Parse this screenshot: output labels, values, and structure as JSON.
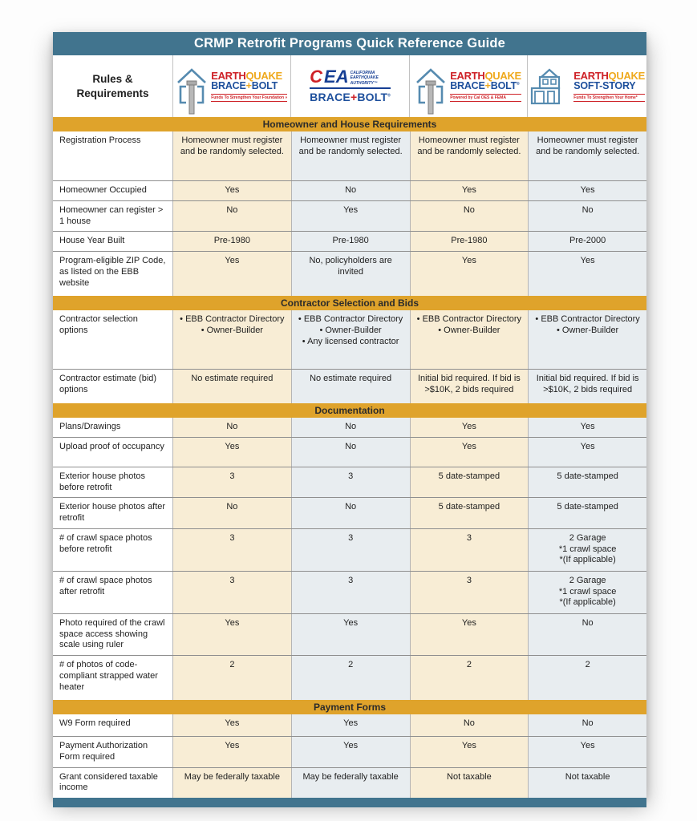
{
  "title": "CRMP Retrofit Programs Quick Reference Guide",
  "corner": {
    "line1": "Rules &",
    "line2": "Requirements"
  },
  "colors": {
    "header_teal": "#41748E",
    "section_gold": "#DFA32B",
    "col_cream": "#F8EDD5",
    "col_bluegray": "#E8EDF0",
    "logo_red": "#CE2127",
    "logo_gold": "#EFA91D",
    "logo_blue": "#1D4F9C"
  },
  "logos": [
    {
      "id": "earthquake-brace-bolt",
      "earth": "EARTH",
      "quake": "QUAKE",
      "brace": "BRACE",
      "plus": "+",
      "bolt": "BOLT",
      "tagline": "Funds To Strengthen Your Foundation »"
    },
    {
      "id": "cea-brace-bolt",
      "c": "C",
      "ea": "EA",
      "auth1": "CALIFORNIA",
      "auth2": "EARTHQUAKE",
      "auth3": "AUTHORITY™",
      "brace": "BRACE",
      "plus": "+",
      "bolt": "BOLT",
      "reg": "®"
    },
    {
      "id": "earthquake-brace-bolt-caloes",
      "earth": "EARTH",
      "quake": "QUAKE",
      "brace": "BRACE",
      "plus": "+",
      "bolt": "BOLT",
      "reg": "®",
      "tagline": "Powered by Cal OES & FEMA"
    },
    {
      "id": "earthquake-soft-story",
      "earth": "EARTH",
      "quake": "QUAKE",
      "brand": "SOFT-STORY",
      "tagline": "Funds To Strengthen Your Home*"
    }
  ],
  "sections": [
    {
      "title": "Homeowner and House Requirements",
      "rows": [
        {
          "label": "Registration Process",
          "values": [
            "Homeowner must register and be randomly selected.",
            "Homeowner must register and be randomly selected.",
            "Homeowner must register and be randomly selected.",
            "Homeowner must register and be randomly selected."
          ]
        },
        {
          "label": "Homeowner Occupied",
          "values": [
            "Yes",
            "No",
            "Yes",
            "Yes"
          ]
        },
        {
          "label": "Homeowner can register > 1 house",
          "values": [
            "No",
            "Yes",
            "No",
            "No"
          ]
        },
        {
          "label": "House Year Built",
          "values": [
            "Pre-1980",
            "Pre-1980",
            "Pre-1980",
            "Pre-2000"
          ]
        },
        {
          "label": "Program-eligible ZIP Code, as listed on the EBB website",
          "values": [
            "Yes",
            "No, policyholders are invited",
            "Yes",
            "Yes"
          ]
        }
      ]
    },
    {
      "title": "Contractor Selection and Bids",
      "rows": [
        {
          "label": "Contractor selection options",
          "values": [
            "• EBB Contractor Directory\n• Owner-Builder",
            "• EBB Contractor Directory\n• Owner-Builder\n• Any licensed contractor",
            "• EBB Contractor Directory\n• Owner-Builder",
            "• EBB Contractor Directory\n• Owner-Builder"
          ]
        },
        {
          "label": "Contractor estimate (bid) options",
          "values": [
            "No estimate required",
            "No estimate required",
            "Initial bid required. If bid is >$10K, 2 bids required",
            "Initial bid required. If bid is >$10K, 2 bids required"
          ]
        }
      ]
    },
    {
      "title": "Documentation",
      "rows": [
        {
          "label": "Plans/Drawings",
          "values": [
            "No",
            "No",
            "Yes",
            "Yes"
          ]
        },
        {
          "label": "Upload proof of occupancy",
          "values": [
            "Yes",
            "No",
            "Yes",
            "Yes"
          ]
        },
        {
          "label": "Exterior house photos before retrofit",
          "values": [
            "3",
            "3",
            "5 date-stamped",
            "5 date-stamped"
          ]
        },
        {
          "label": "Exterior house photos after retrofit",
          "values": [
            "No",
            "No",
            "5 date-stamped",
            "5 date-stamped"
          ]
        },
        {
          "label": "# of crawl space photos before retrofit",
          "values": [
            "3",
            "3",
            "3",
            "2 Garage\n*1 crawl space\n*(If applicable)"
          ]
        },
        {
          "label": "# of crawl space photos after retrofit",
          "values": [
            "3",
            "3",
            "3",
            "2 Garage\n*1 crawl space\n*(If applicable)"
          ]
        },
        {
          "label": "Photo required of the crawl space access showing scale using ruler",
          "values": [
            "Yes",
            "Yes",
            "Yes",
            "No"
          ]
        },
        {
          "label": "# of photos of code-compliant strapped water heater",
          "values": [
            "2",
            "2",
            "2",
            "2"
          ]
        }
      ]
    },
    {
      "title": "Payment Forms",
      "rows": [
        {
          "label": "W9 Form required",
          "values": [
            "Yes",
            "Yes",
            "No",
            "No"
          ]
        },
        {
          "label": "Payment Authorization Form required",
          "values": [
            "Yes",
            "Yes",
            "Yes",
            "Yes"
          ]
        },
        {
          "label": "Grant considered taxable income",
          "values": [
            "May be federally taxable",
            "May be federally taxable",
            "Not taxable",
            "Not taxable"
          ]
        }
      ]
    }
  ]
}
